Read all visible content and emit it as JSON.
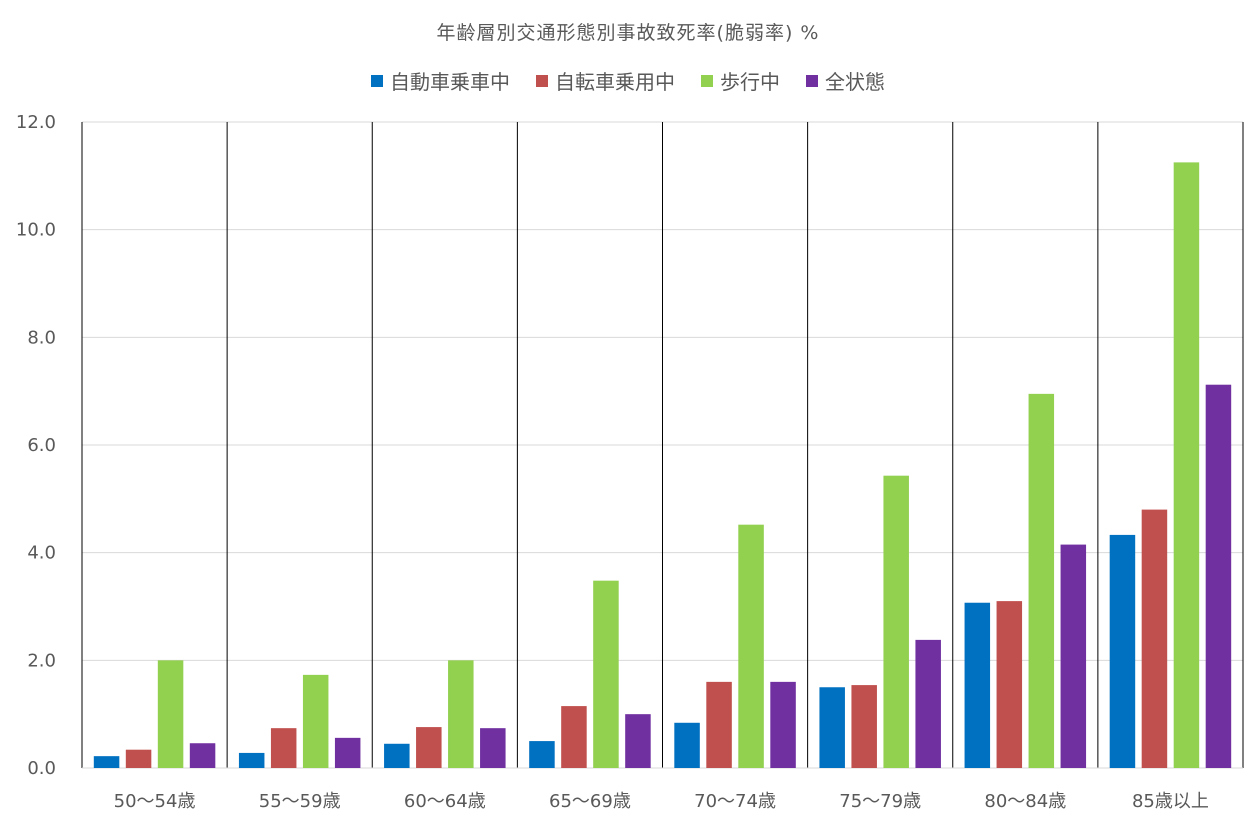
{
  "chart_data": {
    "type": "bar",
    "title": "年齢層別交通形態別事故致死率(脆弱率)  %",
    "xlabel": "",
    "ylabel": "",
    "ylim": [
      0,
      12
    ],
    "yticks": [
      "0.0",
      "2.0",
      "4.0",
      "6.0",
      "8.0",
      "10.0",
      "12.0"
    ],
    "grid": true,
    "legend_position": "top",
    "categories": [
      "50〜54歳",
      "55〜59歳",
      "60〜64歳",
      "65〜69歳",
      "70〜74歳",
      "75〜79歳",
      "80〜84歳",
      "85歳以上"
    ],
    "series": [
      {
        "name": "自動車乗車中",
        "color": "#0070C0",
        "values": [
          0.22,
          0.28,
          0.45,
          0.5,
          0.84,
          1.5,
          3.07,
          4.33
        ]
      },
      {
        "name": "自転車乗用中",
        "color": "#C0504D",
        "values": [
          0.34,
          0.74,
          0.76,
          1.15,
          1.6,
          1.54,
          3.1,
          4.8
        ]
      },
      {
        "name": "歩行中",
        "color": "#92D050",
        "values": [
          2.0,
          1.73,
          2.0,
          3.48,
          4.52,
          5.43,
          6.95,
          11.25
        ]
      },
      {
        "name": "全状態",
        "color": "#7030A0",
        "values": [
          0.46,
          0.56,
          0.74,
          1.0,
          1.6,
          2.38,
          4.15,
          7.12
        ]
      }
    ]
  }
}
